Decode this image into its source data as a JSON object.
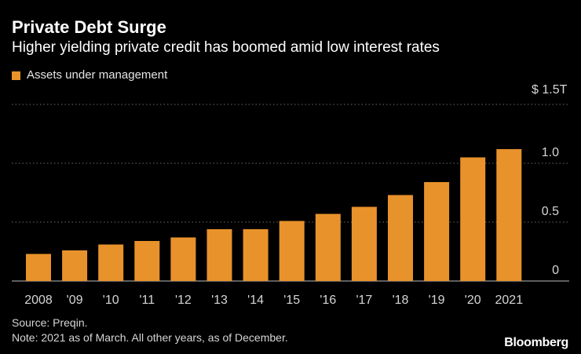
{
  "header": {
    "title": "Private Debt Surge",
    "subtitle": "Higher yielding private credit has boomed amid low interest rates"
  },
  "legend": {
    "label": "Assets under management"
  },
  "axis": {
    "y_unit_label": "$ 1.5T"
  },
  "footer": {
    "source": "Source: Preqin.",
    "note": "Note: 2021 as of March. All other years, as of December.",
    "brand": "Bloomberg"
  },
  "colors": {
    "bar": "#e8922b",
    "background": "#000000",
    "gridline": "#6b6b6b"
  },
  "chart_data": {
    "type": "bar",
    "categories": [
      "2008",
      "'09",
      "'10",
      "'11",
      "'12",
      "'13",
      "'14",
      "'15",
      "'16",
      "'17",
      "'18",
      "'19",
      "'20",
      "2021"
    ],
    "series": [
      {
        "name": "Assets under management",
        "values": [
          0.23,
          0.26,
          0.31,
          0.34,
          0.37,
          0.44,
          0.44,
          0.51,
          0.57,
          0.63,
          0.73,
          0.84,
          1.05,
          1.12
        ]
      }
    ],
    "yticks": [
      "0",
      "0.5",
      "1.0"
    ],
    "ylim": [
      0,
      1.5
    ],
    "grid": true,
    "legend_position": "top-left",
    "y_axis_side": "right"
  }
}
